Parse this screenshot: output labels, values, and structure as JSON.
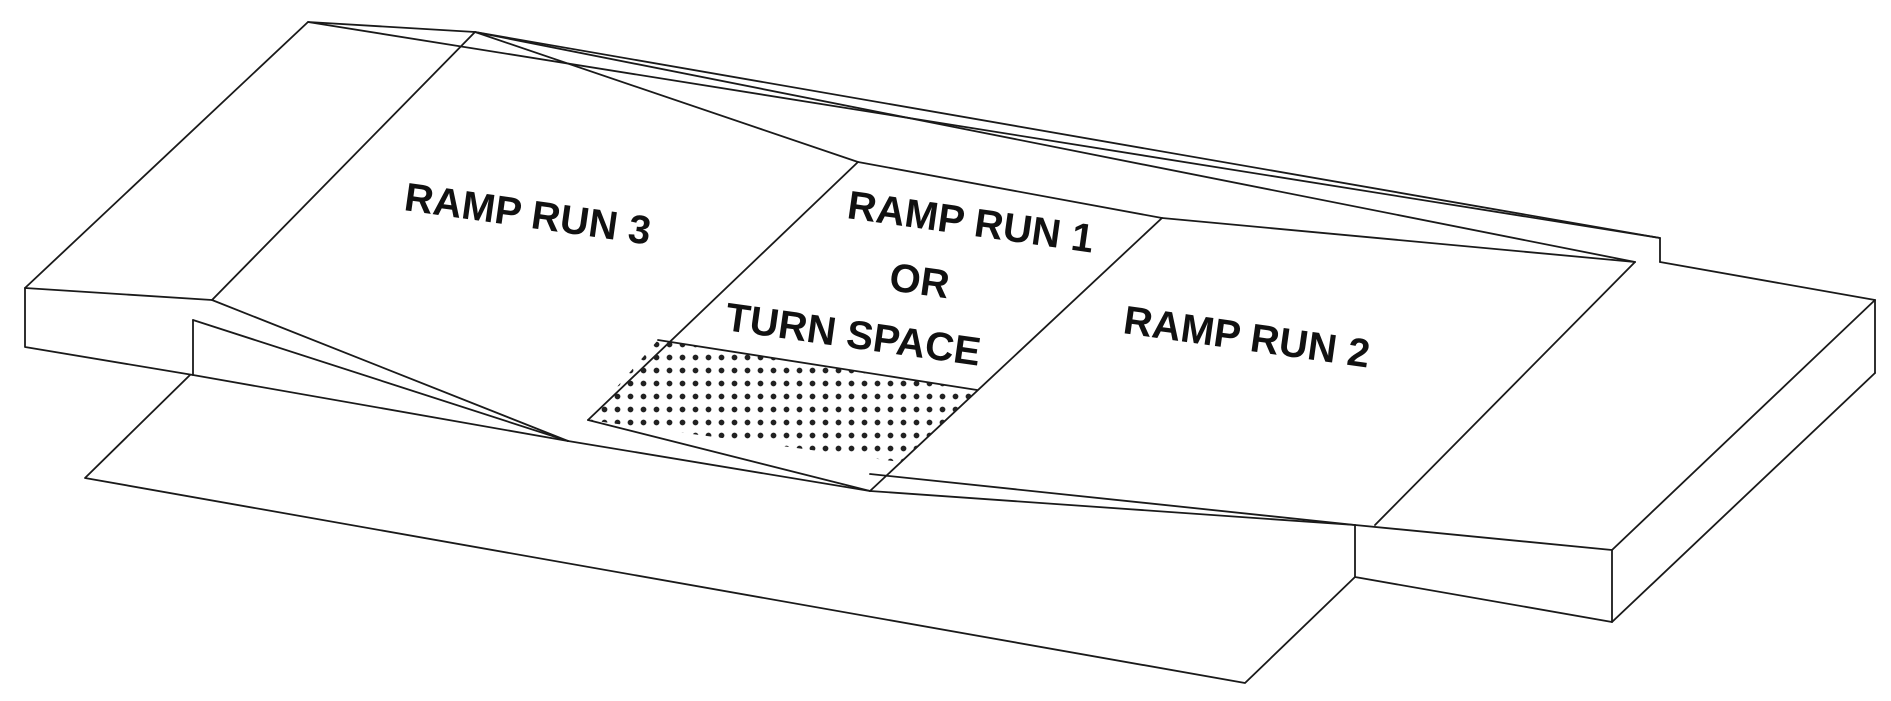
{
  "diagram": {
    "labels": {
      "ramp_run_3": "RAMP RUN 3",
      "ramp_run_1": "RAMP RUN 1",
      "or": "OR",
      "turn_space": "TURN SPACE",
      "ramp_run_2": "RAMP RUN 2"
    },
    "colors": {
      "line": "#1a1a1a",
      "text": "#111111",
      "dot": "#222222",
      "background": "#ffffff"
    }
  }
}
